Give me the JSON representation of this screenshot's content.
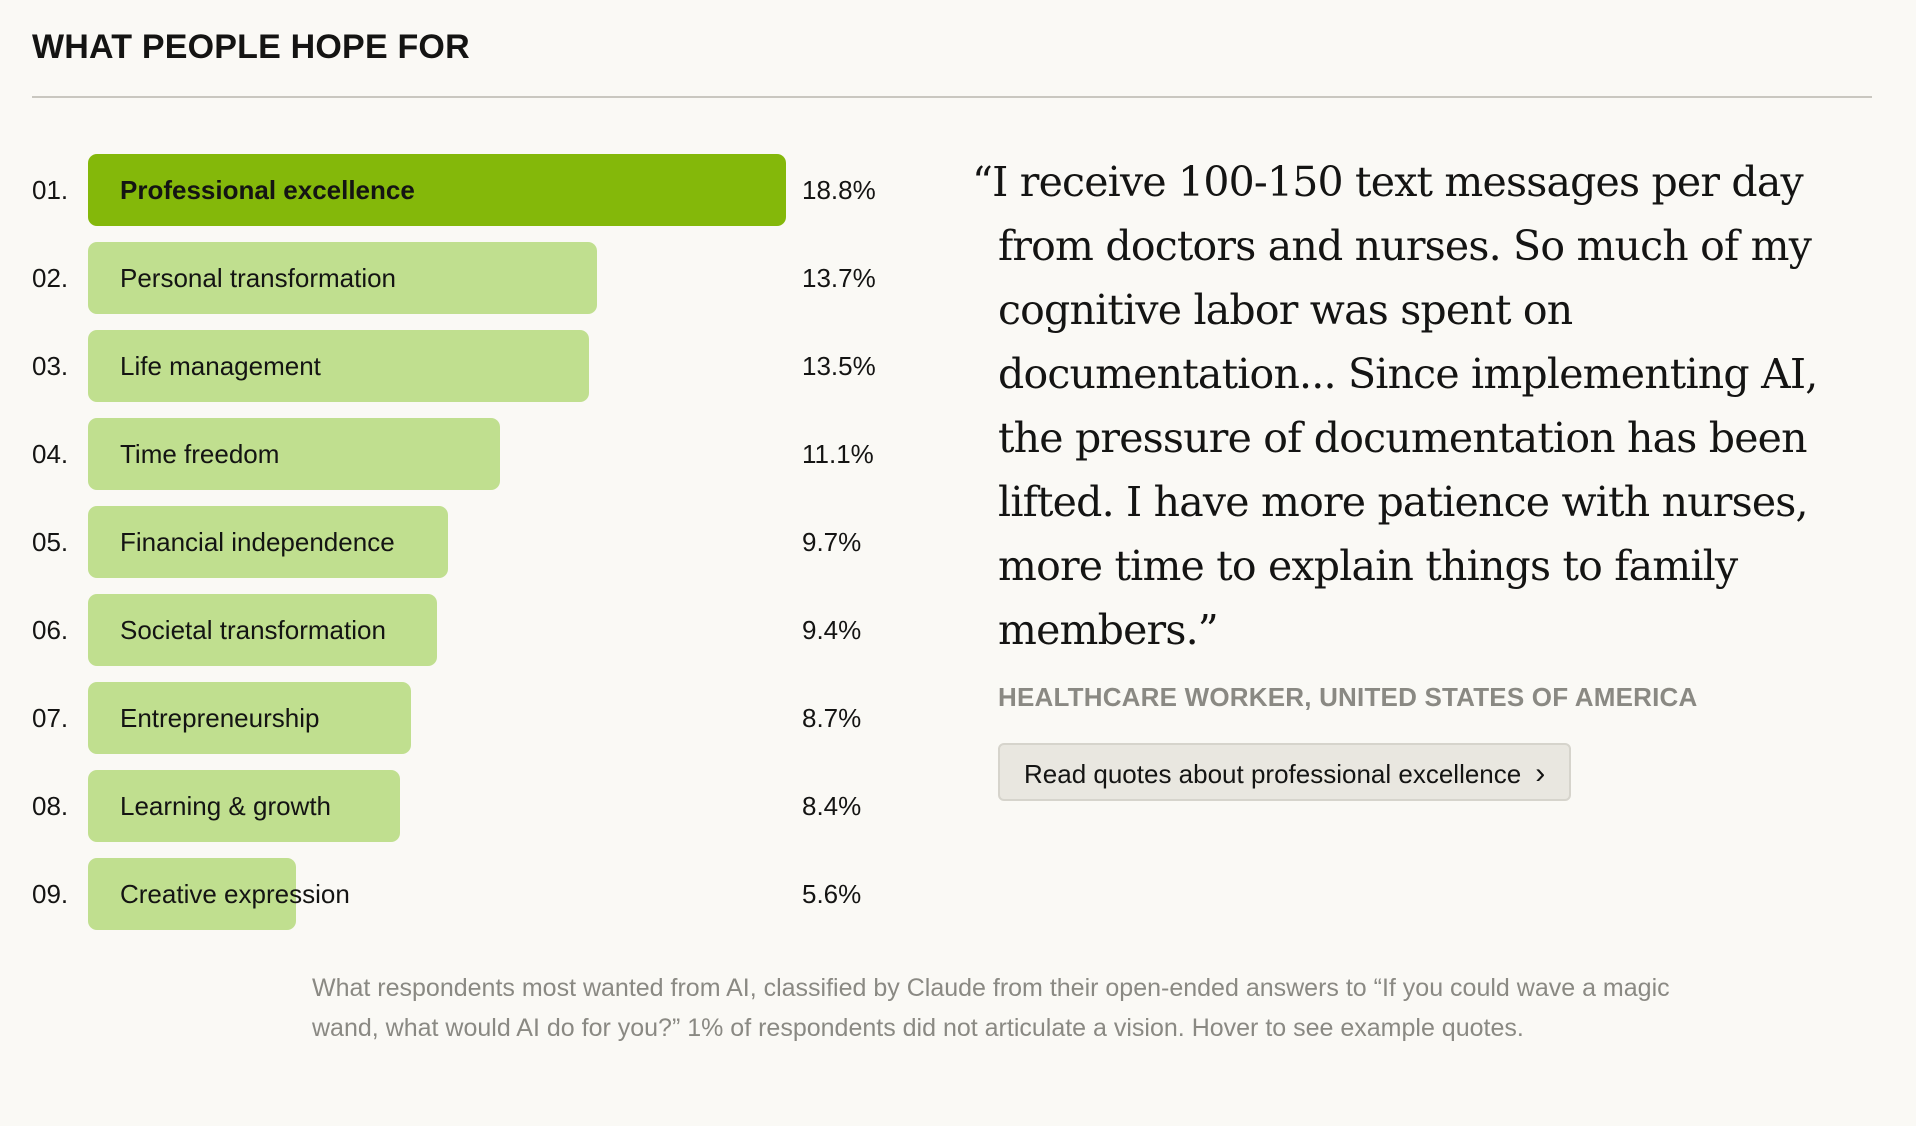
{
  "heading": "WHAT PEOPLE HOPE FOR",
  "chart_data": {
    "type": "bar",
    "orientation": "horizontal",
    "title": "WHAT PEOPLE HOPE FOR",
    "ranks": [
      "01.",
      "02.",
      "03.",
      "04.",
      "05.",
      "06.",
      "07.",
      "08.",
      "09."
    ],
    "categories": [
      "Professional excellence",
      "Personal transformation",
      "Life management",
      "Time freedom",
      "Financial independence",
      "Societal transformation",
      "Entrepreneurship",
      "Learning & growth",
      "Creative expression"
    ],
    "values": [
      18.8,
      13.7,
      13.5,
      11.1,
      9.7,
      9.4,
      8.7,
      8.4,
      5.6
    ],
    "value_labels": [
      "18.8%",
      "13.7%",
      "13.5%",
      "11.1%",
      "9.7%",
      "9.4%",
      "8.7%",
      "8.4%",
      "5.6%"
    ],
    "unit": "%",
    "highlighted_index": 0,
    "colors": {
      "highlighted": "#84b80a",
      "default": "#c0df8f"
    }
  },
  "quote": {
    "text": "“I receive 100-150 text messages per day from doctors and nurses. So much of my cognitive labor was spent on documentation... Since implementing AI, the pressure of documentation has been lifted. I have more patience with nurses, more time to explain things to family members.”",
    "attribution": "HEALTHCARE WORKER, UNITED STATES OF AMERICA",
    "button_label": "Read quotes about professional excellence",
    "button_icon": "chevron-right-icon"
  },
  "caption": "What respondents most wanted from AI, classified by Claude from their open-ended answers to “If you could wave a magic wand, what would AI do for you?” 1% of respondents did not articulate a vision. Hover to see example quotes."
}
